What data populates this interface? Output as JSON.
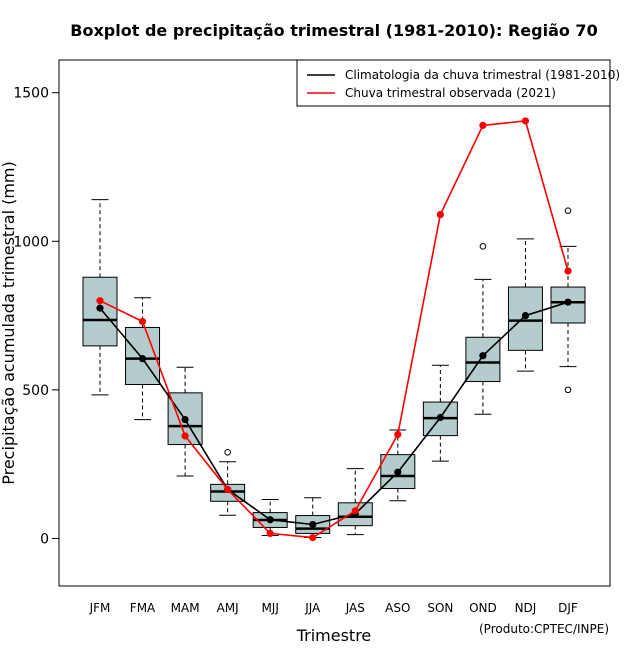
{
  "colors": {
    "box_fill": "#b4cccc",
    "climatology": "#000000",
    "observed": "#ff0000",
    "outlier": "#000000"
  },
  "chart_data": {
    "type": "boxplot",
    "title": "Boxplot de precipitação trimestral (1981-2010): Região 70",
    "xlabel": "Trimestre",
    "ylabel": "Precipitação acumulada trimestral (mm)",
    "credit": "(Produto:CPTEC/INPE)",
    "ylim": [
      -160,
      1610
    ],
    "yticks": [
      0,
      500,
      1000,
      1500
    ],
    "categories": [
      "JFM",
      "FMA",
      "MAM",
      "AMJ",
      "MJJ",
      "JJA",
      "JAS",
      "ASO",
      "SON",
      "OND",
      "NDJ",
      "DJF"
    ],
    "boxes": [
      {
        "min": 483,
        "q1": 648,
        "median": 735,
        "q3": 879,
        "max": 1140,
        "outliers": []
      },
      {
        "min": 400,
        "q1": 518,
        "median": 605,
        "q3": 710,
        "max": 810,
        "outliers": []
      },
      {
        "min": 210,
        "q1": 316,
        "median": 378,
        "q3": 490,
        "max": 576,
        "outliers": []
      },
      {
        "min": 78,
        "q1": 125,
        "median": 158,
        "q3": 182,
        "max": 258,
        "outliers": [
          290
        ]
      },
      {
        "min": 10,
        "q1": 37,
        "median": 62,
        "q3": 87,
        "max": 131,
        "outliers": []
      },
      {
        "min": 3,
        "q1": 17,
        "median": 33,
        "q3": 77,
        "max": 137,
        "outliers": []
      },
      {
        "min": 13,
        "q1": 43,
        "median": 73,
        "q3": 120,
        "max": 235,
        "outliers": []
      },
      {
        "min": 127,
        "q1": 168,
        "median": 210,
        "q3": 282,
        "max": 365,
        "outliers": []
      },
      {
        "min": 260,
        "q1": 346,
        "median": 405,
        "q3": 459,
        "max": 583,
        "outliers": []
      },
      {
        "min": 418,
        "q1": 528,
        "median": 592,
        "q3": 677,
        "max": 872,
        "outliers": [
          983
        ]
      },
      {
        "min": 563,
        "q1": 633,
        "median": 733,
        "q3": 846,
        "max": 1008,
        "outliers": []
      },
      {
        "min": 578,
        "q1": 725,
        "median": 795,
        "q3": 846,
        "max": 983,
        "outliers": [
          1103,
          500
        ]
      }
    ],
    "series": [
      {
        "name": "Climatologia da chuva trimestral (1981-2010)",
        "color": "#000000",
        "values": [
          775,
          605,
          400,
          165,
          63,
          47,
          83,
          223,
          407,
          615,
          750,
          795
        ]
      },
      {
        "name": "Chuva trimestral observada (2021)",
        "color": "#ff0000",
        "values": [
          800,
          730,
          345,
          165,
          17,
          3,
          93,
          350,
          1090,
          1390,
          1405,
          900
        ]
      }
    ]
  }
}
